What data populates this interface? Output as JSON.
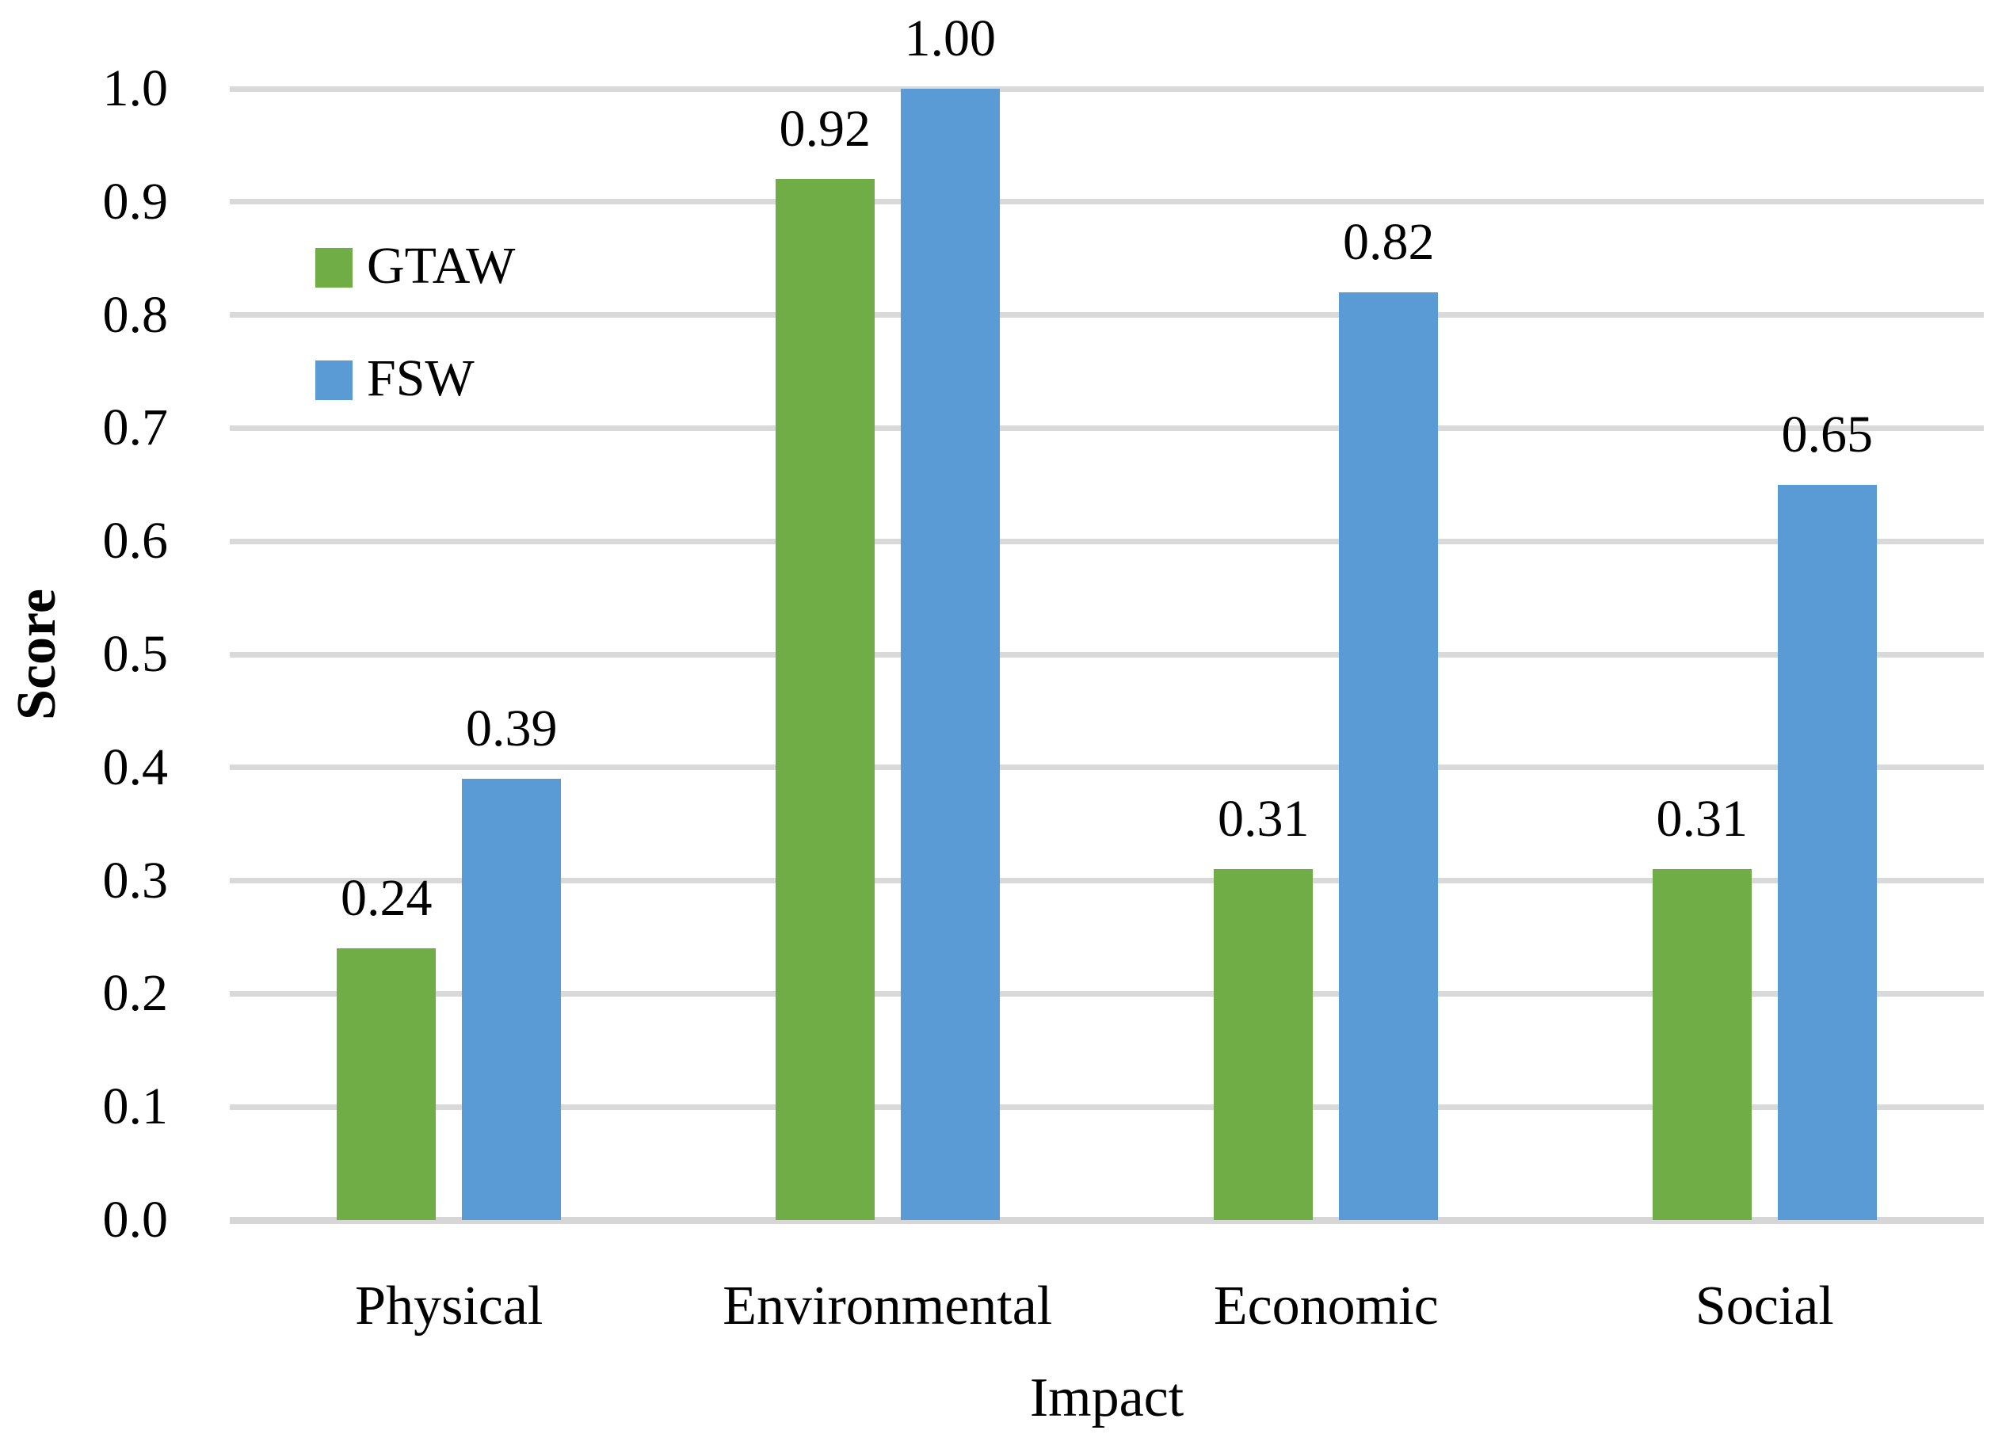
{
  "chart_data": {
    "type": "bar",
    "title": "",
    "categories": [
      "Physical",
      "Environmental",
      "Economic",
      "Social"
    ],
    "series": [
      {
        "name": "GTAW",
        "color": "#70AD47",
        "values": [
          0.24,
          0.92,
          0.31,
          0.31
        ],
        "data_labels": [
          "0.24",
          "0.92",
          "0.31",
          "0.31"
        ]
      },
      {
        "name": "FSW",
        "color": "#5B9BD5",
        "values": [
          0.39,
          1.0,
          0.82,
          0.65
        ],
        "data_labels": [
          "0.39",
          "1.00",
          "0.82",
          "0.65"
        ]
      }
    ],
    "xlabel": "Impact",
    "ylabel": "Score",
    "ylim": [
      0.0,
      1.0
    ],
    "ytick_labels": [
      "0.0",
      "0.1",
      "0.2",
      "0.3",
      "0.4",
      "0.5",
      "0.6",
      "0.7",
      "0.8",
      "0.9",
      "1.0"
    ],
    "grid": true,
    "gridline_color": "#D9D9D9",
    "axis_line_color": "#D6D6D6",
    "text_color": "#000000",
    "background_color": "#FFFFFF",
    "legend": {
      "position": "upper-left-inside",
      "entries": [
        "GTAW",
        "FSW"
      ]
    }
  }
}
